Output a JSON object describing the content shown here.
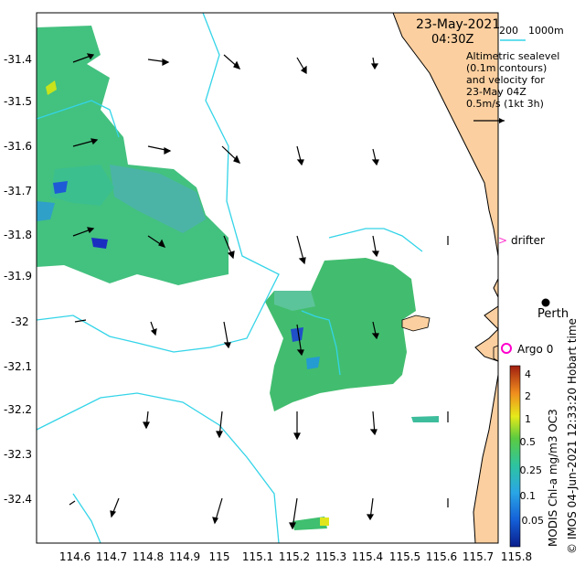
{
  "header": {
    "date": "23-May-2021",
    "time": "04:30Z",
    "depth_label_200": "200",
    "depth_label_1000": "1000m"
  },
  "caption": {
    "line1": "Altimetric sealevel",
    "line2": "(0.1m contours)",
    "line3": "and velocity for",
    "line4": "23-May 04Z",
    "line5": "0.5m/s (1kt 3h)"
  },
  "x_axis": {
    "ticks": [
      "114.6",
      "114.7",
      "114.8",
      "114.9",
      "115",
      "115.1",
      "115.2",
      "115.3",
      "115.4",
      "115.5",
      "115.6",
      "115.7",
      "115.8"
    ]
  },
  "y_axis": {
    "ticks": [
      "-31.4",
      "-31.5",
      "-31.6",
      "-31.7",
      "-31.8",
      "-31.9",
      "-32",
      "-32.1",
      "-32.2",
      "-32.3",
      "-32.4"
    ]
  },
  "labels": {
    "drifter": "drifter",
    "perth": "Perth",
    "argo": "Argo 0"
  },
  "colorbar": {
    "ticks": [
      "4",
      "2",
      "1",
      "0.5",
      "0.25",
      "0.1",
      "0.05"
    ],
    "title": "MODIS Chl-a mg/m3 OC3"
  },
  "credit": "© IMOS 04-Jun-2021 12:33:20 Hobart time",
  "colors": {
    "land": "#fbcf9f",
    "isobath": "#33d4e8",
    "chl_main": "#3fbf7f",
    "drifter_marker": "#ff33cc",
    "argo_marker": "#ff00cc"
  }
}
